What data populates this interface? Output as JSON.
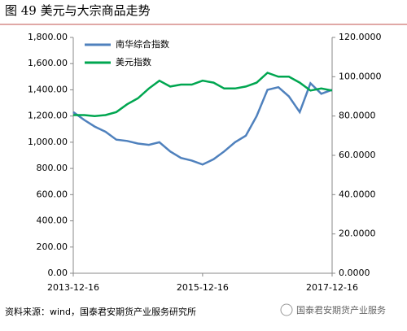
{
  "chart_data": {
    "type": "line",
    "title": "图 49 美元与大宗商品走势",
    "source": "资料来源：wind，国泰君安期货产业服务研究所",
    "watermark": "国泰君安期货产业服务",
    "x": [
      "2013-12-16",
      "2014-02-16",
      "2014-04-16",
      "2014-06-16",
      "2014-08-16",
      "2014-10-16",
      "2014-12-16",
      "2015-02-16",
      "2015-04-16",
      "2015-06-16",
      "2015-08-16",
      "2015-10-16",
      "2015-12-16",
      "2016-02-16",
      "2016-04-16",
      "2016-06-16",
      "2016-08-16",
      "2016-10-16",
      "2016-12-16",
      "2017-02-16",
      "2017-04-16",
      "2017-06-16",
      "2017-08-16",
      "2017-10-16",
      "2017-12-16"
    ],
    "xlim": [
      "2013-12-16",
      "2017-12-16"
    ],
    "xticks": [
      "2013-12-16",
      "2015-12-16",
      "2017-12-16"
    ],
    "ylim": [
      0,
      1800
    ],
    "yticks": [
      {
        "value": 0,
        "label": "0.00"
      },
      {
        "value": 200,
        "label": "200.00"
      },
      {
        "value": 400,
        "label": "400.00"
      },
      {
        "value": 600,
        "label": "600.00"
      },
      {
        "value": 800,
        "label": "800.00"
      },
      {
        "value": 1000,
        "label": "1,000.00"
      },
      {
        "value": 1200,
        "label": "1,200.00"
      },
      {
        "value": 1400,
        "label": "1,400.00"
      },
      {
        "value": 1600,
        "label": "1,600.00"
      },
      {
        "value": 1800,
        "label": "1,800.00"
      }
    ],
    "y2lim": [
      0,
      120
    ],
    "y2ticks": [
      {
        "value": 0,
        "label": "0.0000"
      },
      {
        "value": 20,
        "label": "20.0000"
      },
      {
        "value": 40,
        "label": "40.0000"
      },
      {
        "value": 60,
        "label": "60.0000"
      },
      {
        "value": 80,
        "label": "80.0000"
      },
      {
        "value": 100,
        "label": "100.0000"
      },
      {
        "value": 120,
        "label": "120.0000"
      }
    ],
    "series": [
      {
        "name": "南华综合指数",
        "color": "#4f81bd",
        "axis": "y",
        "values": [
          1230,
          1170,
          1120,
          1080,
          1020,
          1010,
          990,
          980,
          1000,
          930,
          880,
          860,
          830,
          870,
          930,
          1000,
          1050,
          1200,
          1400,
          1420,
          1350,
          1230,
          1450,
          1370,
          1400
        ]
      },
      {
        "name": "美元指数",
        "color": "#00a650",
        "axis": "y2",
        "values": [
          80.5,
          80.5,
          80,
          80.5,
          82,
          86,
          89,
          94,
          98,
          95,
          96,
          96,
          98,
          97,
          94,
          94,
          95,
          97,
          102,
          100,
          100,
          97,
          93,
          94,
          93
        ]
      }
    ]
  }
}
